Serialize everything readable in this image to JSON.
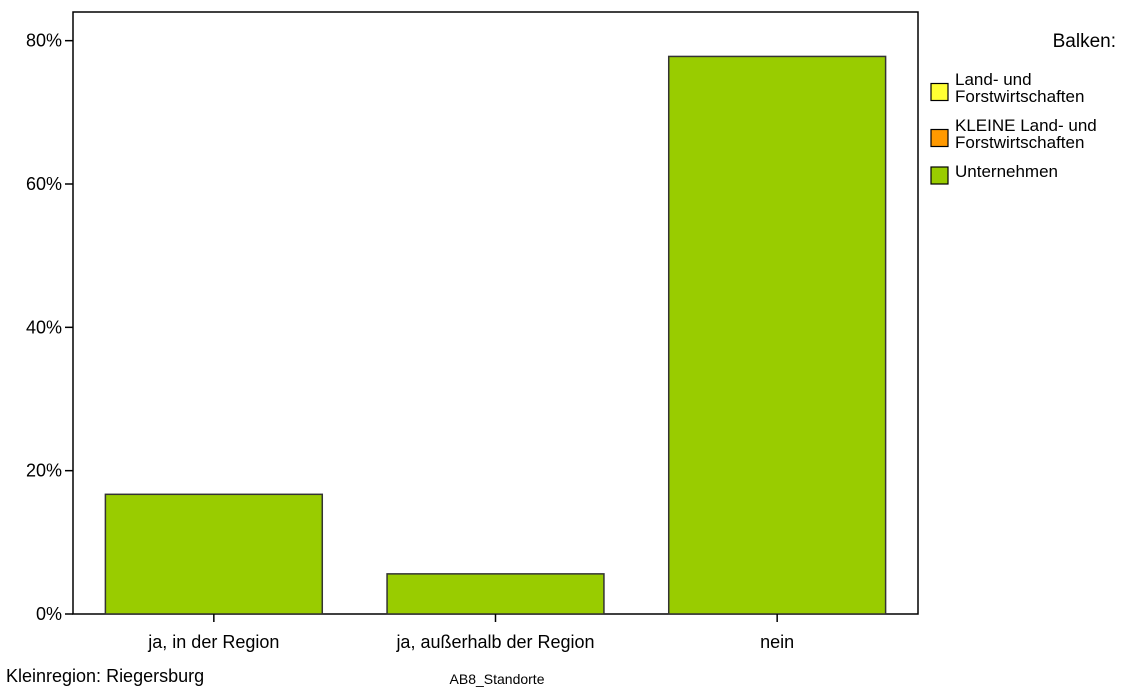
{
  "chart_data": {
    "type": "bar",
    "categories": [
      "ja, in der Region",
      "ja, außerhalb der Region",
      "nein"
    ],
    "series": [
      {
        "name": "Unternehmen",
        "color": "#99cc00",
        "values": [
          16.7,
          5.6,
          77.8
        ]
      }
    ],
    "y_ticks": [
      "0%",
      "20%",
      "40%",
      "60%",
      "80%"
    ],
    "ylim": [
      0,
      84
    ],
    "grid": false,
    "xlabel": "AB8_Standorte",
    "ylabel": "",
    "legend": {
      "title": "Balken:",
      "placement": "right",
      "entries": [
        {
          "lines": [
            "Land- und",
            "Forstwirtschaften"
          ],
          "color": "#ffff33"
        },
        {
          "lines": [
            "KLEINE Land- und",
            "Forstwirtschaften"
          ],
          "color": "#ff9900"
        },
        {
          "lines": [
            "Unternehmen"
          ],
          "color": "#99cc00"
        }
      ]
    },
    "footnote": "Kleinregion: Riegersburg"
  }
}
